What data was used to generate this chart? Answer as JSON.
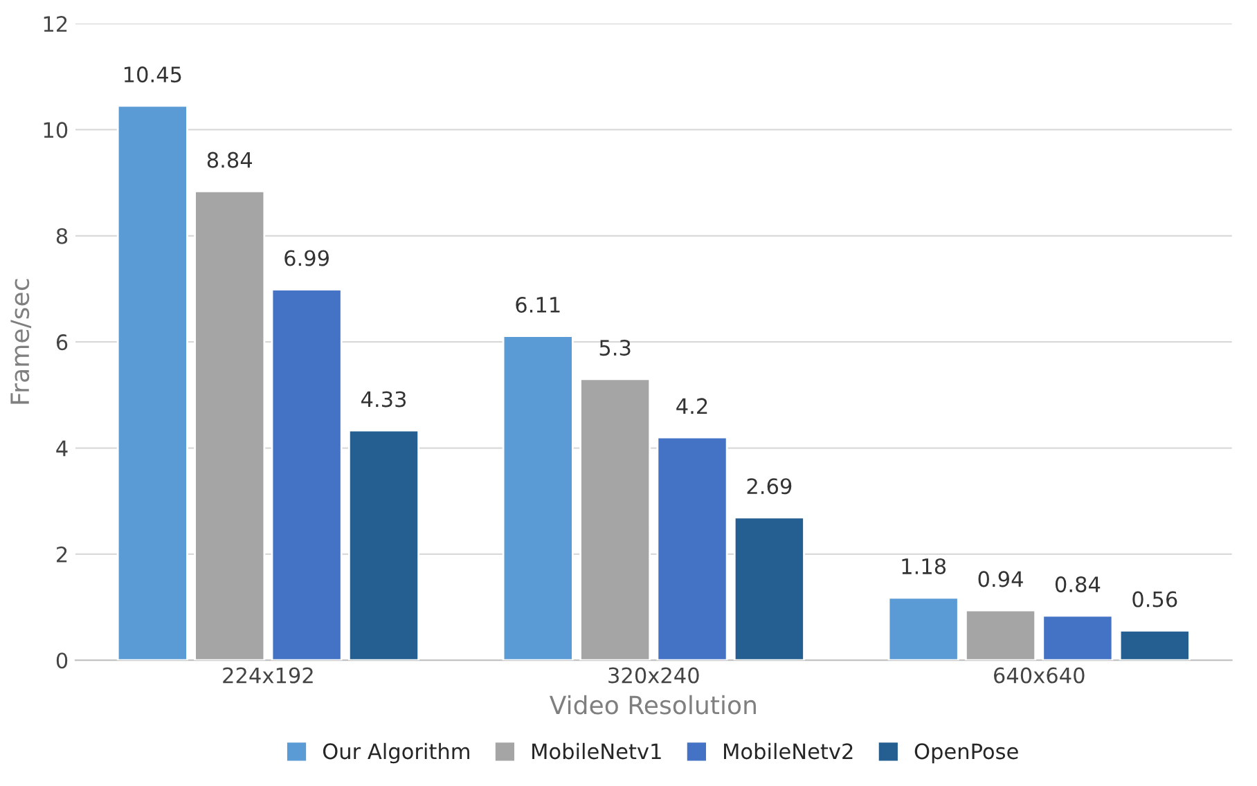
{
  "chart_data": {
    "type": "bar",
    "xlabel": "Video Resolution",
    "ylabel": "Frame/sec",
    "categories": [
      "224x192",
      "320x240",
      "640x640"
    ],
    "series": [
      {
        "name": "Our Algorithm",
        "color": "#5b9bd5",
        "values": [
          10.45,
          6.11,
          1.18
        ]
      },
      {
        "name": "MobileNetv1",
        "color": "#a5a5a5",
        "values": [
          8.84,
          5.3,
          0.94
        ]
      },
      {
        "name": "MobileNetv2",
        "color": "#4472c4",
        "values": [
          6.99,
          4.2,
          0.84
        ]
      },
      {
        "name": "OpenPose",
        "color": "#255e91",
        "values": [
          4.33,
          2.69,
          0.56
        ]
      }
    ],
    "ylim": [
      0,
      12
    ],
    "yticks": [
      0,
      2,
      4,
      6,
      8,
      10,
      12
    ],
    "grid": "y",
    "legend": "bottom",
    "data_labels": true
  }
}
